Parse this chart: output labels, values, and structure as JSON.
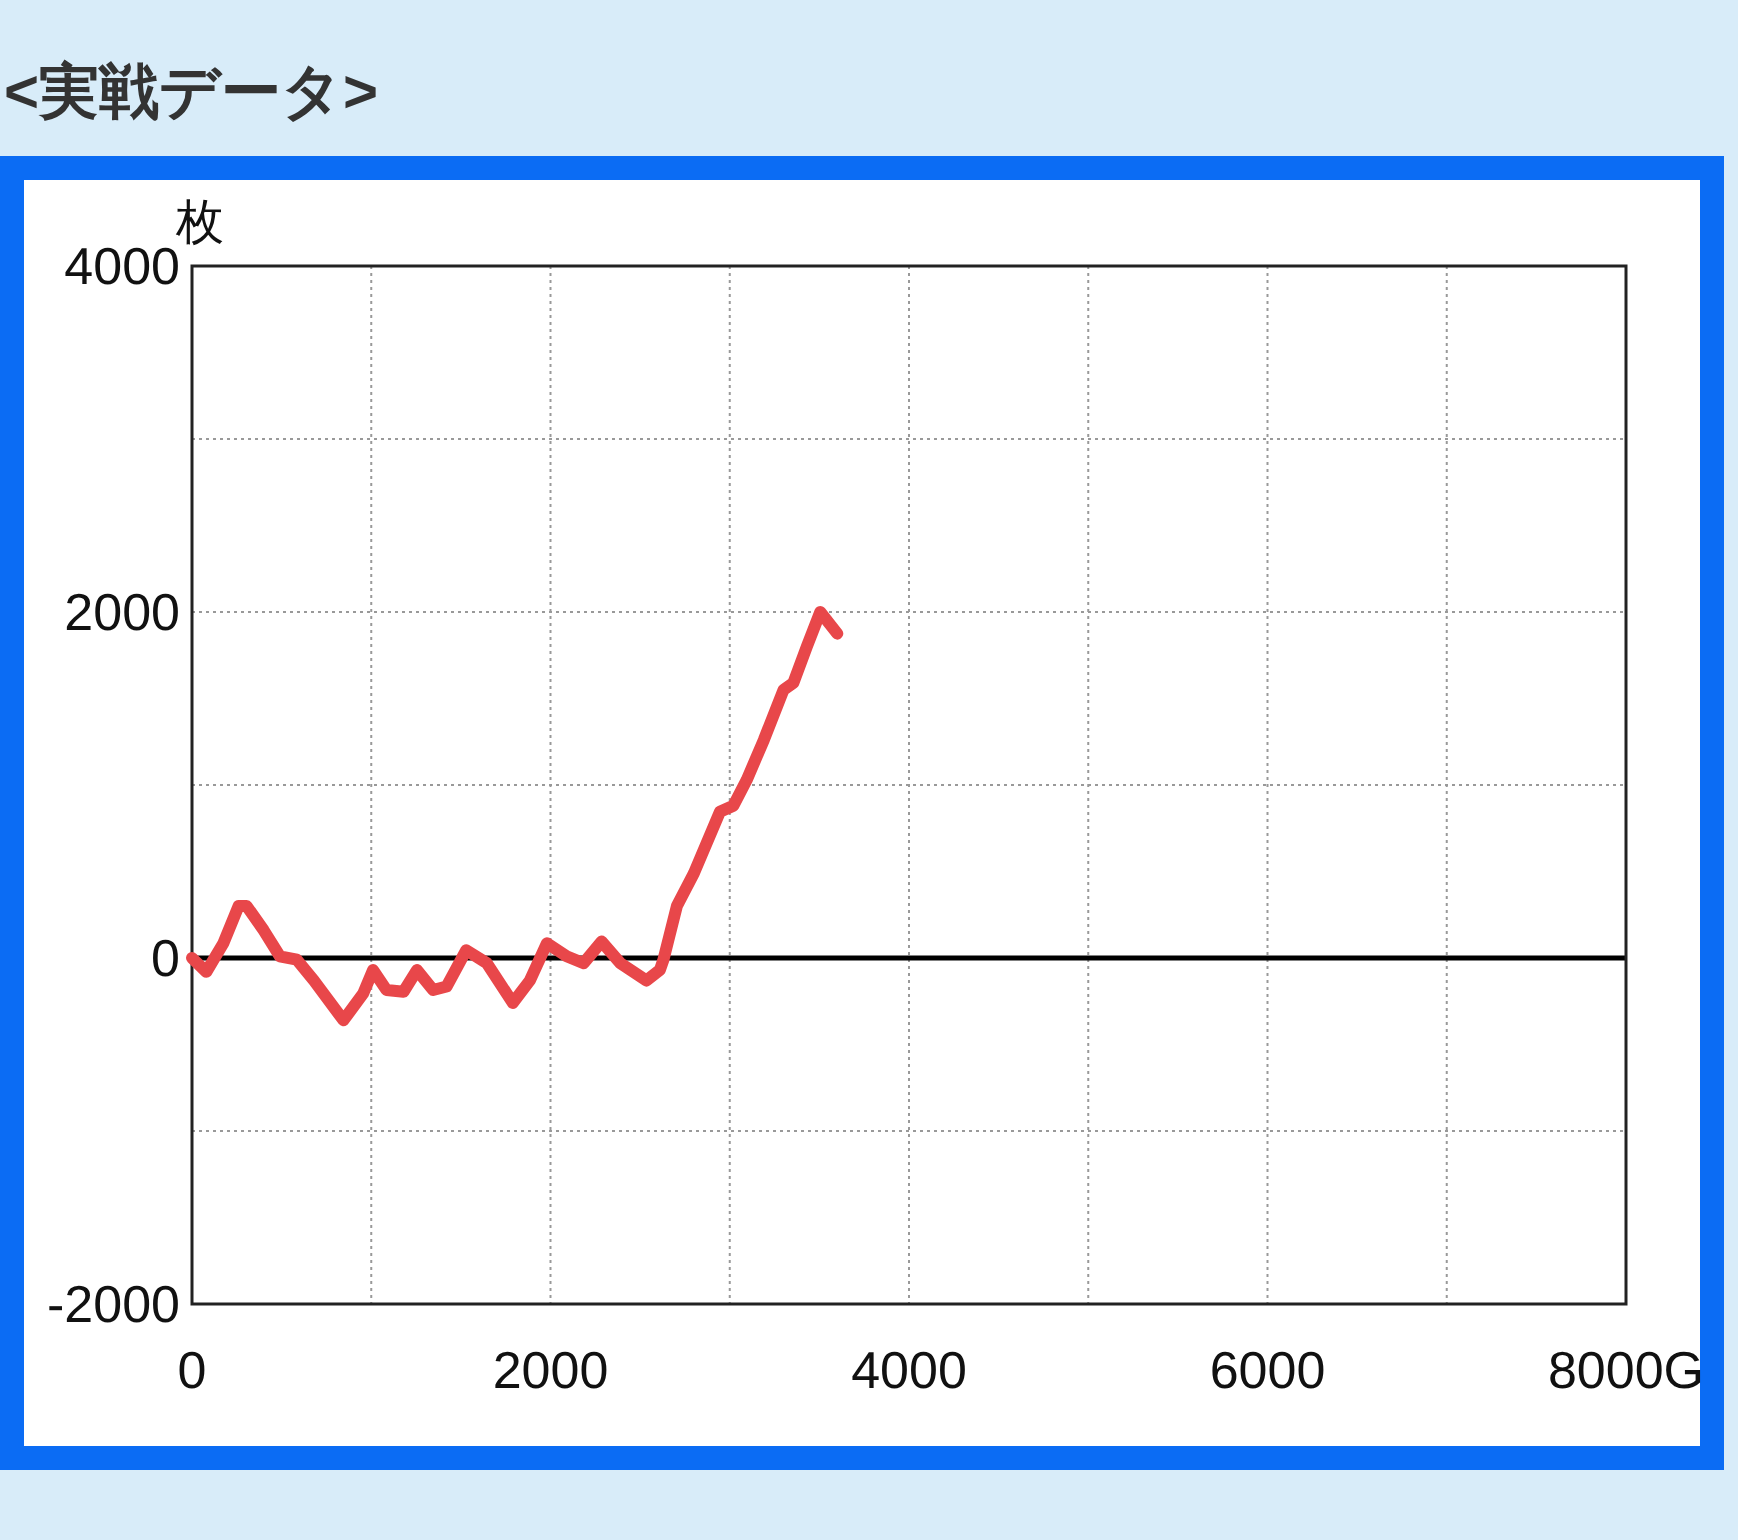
{
  "chart_data": {
    "type": "line",
    "title": "<実戦データ>",
    "ylabel": "枚",
    "x": [
      0,
      80,
      175,
      260,
      305,
      400,
      490,
      585,
      680,
      845,
      955,
      1010,
      1085,
      1180,
      1255,
      1345,
      1420,
      1530,
      1645,
      1790,
      1885,
      1980,
      2090,
      2185,
      2285,
      2390,
      2535,
      2610,
      2630,
      2705,
      2800,
      2945,
      3020,
      3095,
      3190,
      3300,
      3355,
      3430,
      3505,
      3600
    ],
    "series": [
      {
        "color": "#e8474a",
        "values": [
          0,
          -80,
          85,
          300,
          300,
          160,
          10,
          -10,
          -130,
          -360,
          -205,
          -70,
          -185,
          -195,
          -70,
          -185,
          -165,
          45,
          -30,
          -260,
          -130,
          85,
          10,
          -30,
          95,
          -30,
          -130,
          -70,
          -10,
          300,
          490,
          845,
          880,
          1030,
          1260,
          1550,
          1590,
          1800,
          2000,
          1875
        ]
      }
    ],
    "xlim": [
      0,
      8000
    ],
    "ylim": [
      -2000,
      4000
    ],
    "xticks": [
      0,
      {
        "value": 1000,
        "label": null
      },
      2000,
      {
        "value": 3000,
        "label": null
      },
      4000,
      {
        "value": 5000,
        "label": null
      },
      6000,
      {
        "value": 7000,
        "label": null
      },
      {
        "value": 8000,
        "label": "8000G"
      }
    ],
    "yticks": [
      -2000,
      {
        "value": -1000,
        "label": null
      },
      0,
      {
        "value": 1000,
        "label": null
      },
      2000,
      {
        "value": 3000,
        "label": null
      },
      4000
    ],
    "grid": true,
    "ref_lines": [
      {
        "axis": "y",
        "value": 0,
        "color": "#000000"
      }
    ]
  }
}
